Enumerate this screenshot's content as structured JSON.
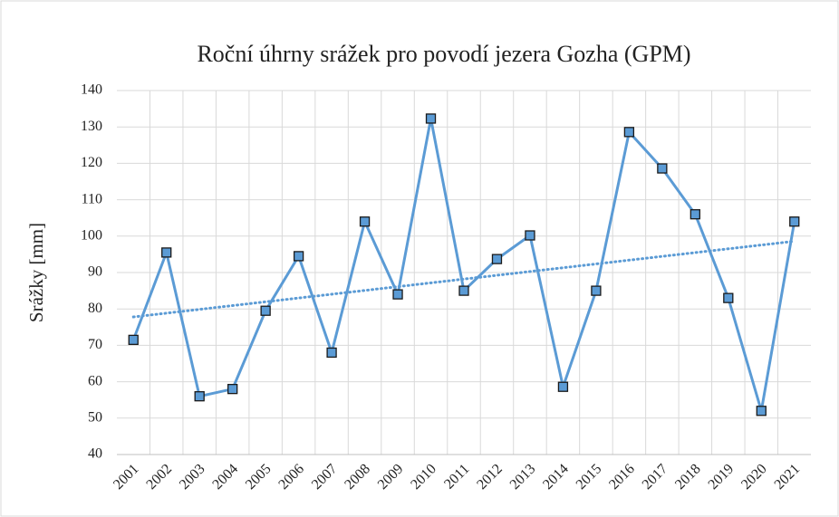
{
  "chart_data": {
    "type": "line",
    "title": "Roční úhrny srážek pro povodí jezera Gozha (GPM)",
    "y_label": "Srážky [mm]",
    "categories": [
      "2001",
      "2002",
      "2003",
      "2004",
      "2005",
      "2006",
      "2007",
      "2008",
      "2009",
      "2010",
      "2011",
      "2012",
      "2013",
      "2014",
      "2015",
      "2016",
      "2017",
      "2018",
      "2019",
      "2020",
      "2021"
    ],
    "series": [
      {
        "color": "#5b9bd5",
        "values": [
          71.5,
          95.5,
          56,
          58,
          79.5,
          94.5,
          68,
          104,
          84,
          132.3,
          85,
          93.7,
          100.2,
          58.6,
          85,
          128.6,
          118.6,
          106,
          83,
          52,
          104
        ]
      }
    ],
    "trendline": {
      "color": "#5b9bd5",
      "values": [
        77.8,
        98.6
      ]
    },
    "ylim": [
      40,
      140
    ],
    "yticks": [
      40,
      50,
      60,
      70,
      80,
      90,
      100,
      110,
      120,
      130,
      140
    ],
    "grid": true
  }
}
